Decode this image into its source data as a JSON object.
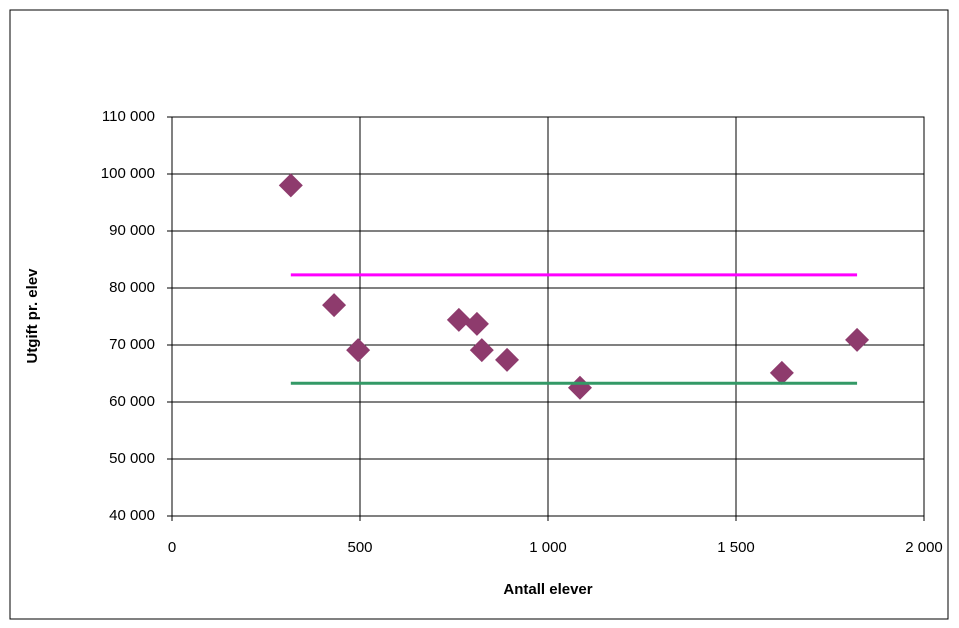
{
  "chart_data": {
    "type": "scatter",
    "xlabel": "Antall elever",
    "ylabel": "Utgift pr. elev",
    "xlim": [
      0,
      2000
    ],
    "xticks": [
      0,
      500,
      {
        "value": 1000,
        "label": "1 000"
      },
      {
        "value": 1500,
        "label": "1 500"
      },
      {
        "value": 2000,
        "label": "2 000"
      }
    ],
    "ylim": [
      40000,
      110000
    ],
    "yticks": [
      {
        "value": 40000,
        "label": "40 000"
      },
      {
        "value": 50000,
        "label": "50 000"
      },
      {
        "value": 60000,
        "label": "60 000"
      },
      {
        "value": 70000,
        "label": "70 000"
      },
      {
        "value": 80000,
        "label": "80 000"
      },
      {
        "value": 90000,
        "label": "90 000"
      },
      {
        "value": 100000,
        "label": "100 000"
      },
      {
        "value": 110000,
        "label": "110 000"
      }
    ],
    "grid": true,
    "series": [
      {
        "color": "#8e3b6d",
        "mode": "markers",
        "marker": "diamond",
        "x": [
          316,
          431,
          495,
          763,
          811,
          824,
          891,
          1085,
          1622,
          1822
        ],
        "values": [
          98000,
          77000,
          69100,
          74400,
          73700,
          69100,
          67400,
          62500,
          65100,
          70900
        ]
      },
      {
        "color": "#ff00ff",
        "mode": "lines",
        "x": [
          316,
          1822
        ],
        "values": [
          82300,
          82300
        ]
      },
      {
        "color": "#339966",
        "mode": "lines",
        "x": [
          316,
          1822
        ],
        "values": [
          63300,
          63300
        ]
      }
    ]
  }
}
